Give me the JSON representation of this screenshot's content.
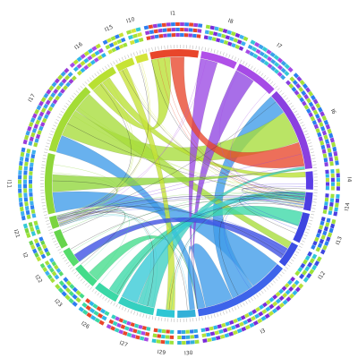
{
  "figure": {
    "segments": [
      {
        "label": "I1",
        "size": 8,
        "color": "#e8462b",
        "ring": [
          "#e8462b",
          "#9a3cd8",
          "#2d7ef0"
        ]
      },
      {
        "label": "I8",
        "size": 6,
        "color": "#b050e8",
        "ring": [
          "#7a2bd9",
          "#3fb0f0",
          "#9de23a"
        ]
      },
      {
        "label": "I7",
        "size": 7,
        "color": "#a64be6",
        "ring": [
          "#a64be6",
          "#3ca0ea",
          "#34c9d6"
        ]
      },
      {
        "label": "I6",
        "size": 14,
        "color": "#8a40e0",
        "ring": [
          "#8a40e0",
          "#a4e03a",
          "#2b7ef0"
        ]
      },
      {
        "label": "I4",
        "size": 3,
        "color": "#5a3de6",
        "ring": [
          "#5a3de6",
          "#2fb5e8",
          "#b7e23a"
        ]
      },
      {
        "label": "I14",
        "size": 3,
        "color": "#4c3ee2",
        "ring": [
          "#4c3ee2",
          "#9de23a",
          "#2fb5e8"
        ]
      },
      {
        "label": "I13",
        "size": 5,
        "color": "#3d45e0",
        "ring": [
          "#3d45e0",
          "#2d7ef0",
          "#a4e03a"
        ]
      },
      {
        "label": "I12",
        "size": 4,
        "color": "#3b4ee4",
        "ring": [
          "#3b4ee4",
          "#34c9d6",
          "#9de23a"
        ]
      },
      {
        "label": "I3",
        "size": 16,
        "color": "#3d64ea",
        "ring": [
          "#7a2bd9",
          "#2fb5e8",
          "#b7e23a"
        ]
      },
      {
        "label": "I30",
        "size": 3,
        "color": "#33b0d8",
        "ring": [
          "#33b0d8",
          "#2d7ef0",
          "#a4e03a"
        ]
      },
      {
        "label": "I29",
        "size": 3,
        "color": "#2ec6d4",
        "ring": [
          "#2ec6d4",
          "#e8462b",
          "#9de23a"
        ]
      },
      {
        "label": "I27",
        "size": 6,
        "color": "#35d0c0",
        "ring": [
          "#35d0c0",
          "#e8462b",
          "#a64be6"
        ]
      },
      {
        "label": "I26",
        "size": 4,
        "color": "#3ad8a6",
        "ring": [
          "#3ad8a6",
          "#2fb5e8",
          "#e8462b"
        ]
      },
      {
        "label": "I23",
        "size": 4,
        "color": "#43dc8a",
        "ring": [
          "#43dc8a",
          "#9de23a",
          "#2d7ef0"
        ]
      },
      {
        "label": "I22",
        "size": 3,
        "color": "#56dc6c",
        "ring": [
          "#56dc6c",
          "#3fb0f0",
          "#a4e03a"
        ]
      },
      {
        "label": "I2",
        "size": 3,
        "color": "#66d44c",
        "ring": [
          "#66d44c",
          "#2d7ef0",
          "#b7e23a"
        ]
      },
      {
        "label": "I21",
        "size": 2,
        "color": "#7bd43f",
        "ring": [
          "#7bd43f",
          "#34c9d6",
          "#9de23a"
        ]
      },
      {
        "label": "I11",
        "size": 10,
        "color": "#8fd63a",
        "ring": [
          "#3fb0f0",
          "#9de23a",
          "#2d7ef0"
        ]
      },
      {
        "label": "I17",
        "size": 12,
        "color": "#a4dc36",
        "ring": [
          "#a4dc36",
          "#3ca0ea",
          "#9a3cd8"
        ]
      },
      {
        "label": "I16",
        "size": 5,
        "color": "#b8e032",
        "ring": [
          "#b8e032",
          "#2fb5e8",
          "#a64be6"
        ]
      },
      {
        "label": "I15",
        "size": 3,
        "color": "#c7e336",
        "ring": [
          "#c7e336",
          "#9de23a",
          "#2d7ef0"
        ]
      },
      {
        "label": "I10",
        "size": 2,
        "color": "#d4e43a",
        "ring": [
          "#d4e43a",
          "#34c9d6",
          "#a4e03a"
        ]
      }
    ],
    "links": [
      {
        "from": "I3",
        "to": "I11",
        "share": 0.35,
        "color": "#3d9be9"
      },
      {
        "from": "I3",
        "to": "I6",
        "share": 0.25,
        "color": "#3d9be9"
      },
      {
        "from": "I3",
        "to": "I30",
        "share": 0.3,
        "color": "#3d9be9"
      },
      {
        "from": "I3",
        "to": "I17",
        "share": 0.25,
        "color": "#3d9be9"
      },
      {
        "from": "I17",
        "to": "I6",
        "share": 0.4,
        "color": "#a6dc3a"
      },
      {
        "from": "I17",
        "to": "I12",
        "share": 0.3,
        "color": "#a6dc3a"
      },
      {
        "from": "I16",
        "to": "I1",
        "share": 0.4,
        "color": "#b8e032"
      },
      {
        "from": "I16",
        "to": "I4",
        "share": 0.3,
        "color": "#b8e032"
      },
      {
        "from": "I7",
        "to": "I3",
        "share": 0.5,
        "color": "#8f45e2"
      },
      {
        "from": "I8",
        "to": "I3",
        "share": 0.5,
        "color": "#9b49e4"
      },
      {
        "from": "I1",
        "to": "I6",
        "share": 0.3,
        "color": "#e8462b"
      },
      {
        "from": "I27",
        "to": "I6",
        "share": 0.5,
        "color": "#3ccfc2"
      },
      {
        "from": "I26",
        "to": "I13",
        "share": 0.5,
        "color": "#3ad8a6"
      },
      {
        "from": "I23",
        "to": "I3",
        "share": 0.5,
        "color": "#43dc8a"
      },
      {
        "from": "I11",
        "to": "I6",
        "share": 0.3,
        "color": "#8fd63a"
      },
      {
        "from": "I15",
        "to": "I29",
        "share": 0.5,
        "color": "#c7e336"
      },
      {
        "from": "I14",
        "to": "I27",
        "share": 0.5,
        "color": "#34c9d6"
      },
      {
        "from": "I12",
        "to": "I22",
        "share": 0.5,
        "color": "#3b4ee4"
      }
    ]
  }
}
